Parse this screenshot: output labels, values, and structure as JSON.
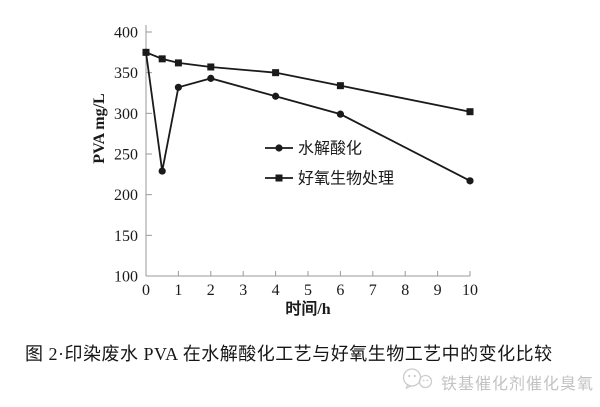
{
  "figure": {
    "caption": "图 2·印染废水 PVA 在水解酸化工艺与好氧生物工艺中的变化比较",
    "watermark_text": "铁基催化剂催化臭氧",
    "watermark_color": "#c3c3c3",
    "ink_color": "#1a1a1a",
    "axis_color": "#999999"
  },
  "chart_data": {
    "type": "line",
    "title": "",
    "xlabel": "时间/h",
    "ylabel": "PVA mg/L",
    "xlim": [
      0,
      10
    ],
    "ylim": [
      100,
      400
    ],
    "x_ticks": [
      0,
      1,
      2,
      3,
      4,
      5,
      6,
      7,
      8,
      9,
      10
    ],
    "y_ticks": [
      100,
      150,
      200,
      250,
      300,
      350,
      400
    ],
    "grid": false,
    "legend_position": "inside-center-right",
    "series": [
      {
        "id": "hydrolysis-acidification",
        "name": "水解酸化",
        "marker": "circle",
        "color": "#1a1a1a",
        "x": [
          0,
          0.5,
          1,
          2,
          4,
          6,
          10
        ],
        "values": [
          375,
          229,
          332,
          343,
          321,
          299,
          217
        ]
      },
      {
        "id": "aerobic-biological-treatment",
        "name": "好氧生物处理",
        "marker": "square",
        "color": "#1a1a1a",
        "x": [
          0,
          0.5,
          1,
          2,
          4,
          6,
          10
        ],
        "values": [
          375,
          367,
          362,
          357,
          350,
          334,
          302
        ]
      }
    ]
  }
}
